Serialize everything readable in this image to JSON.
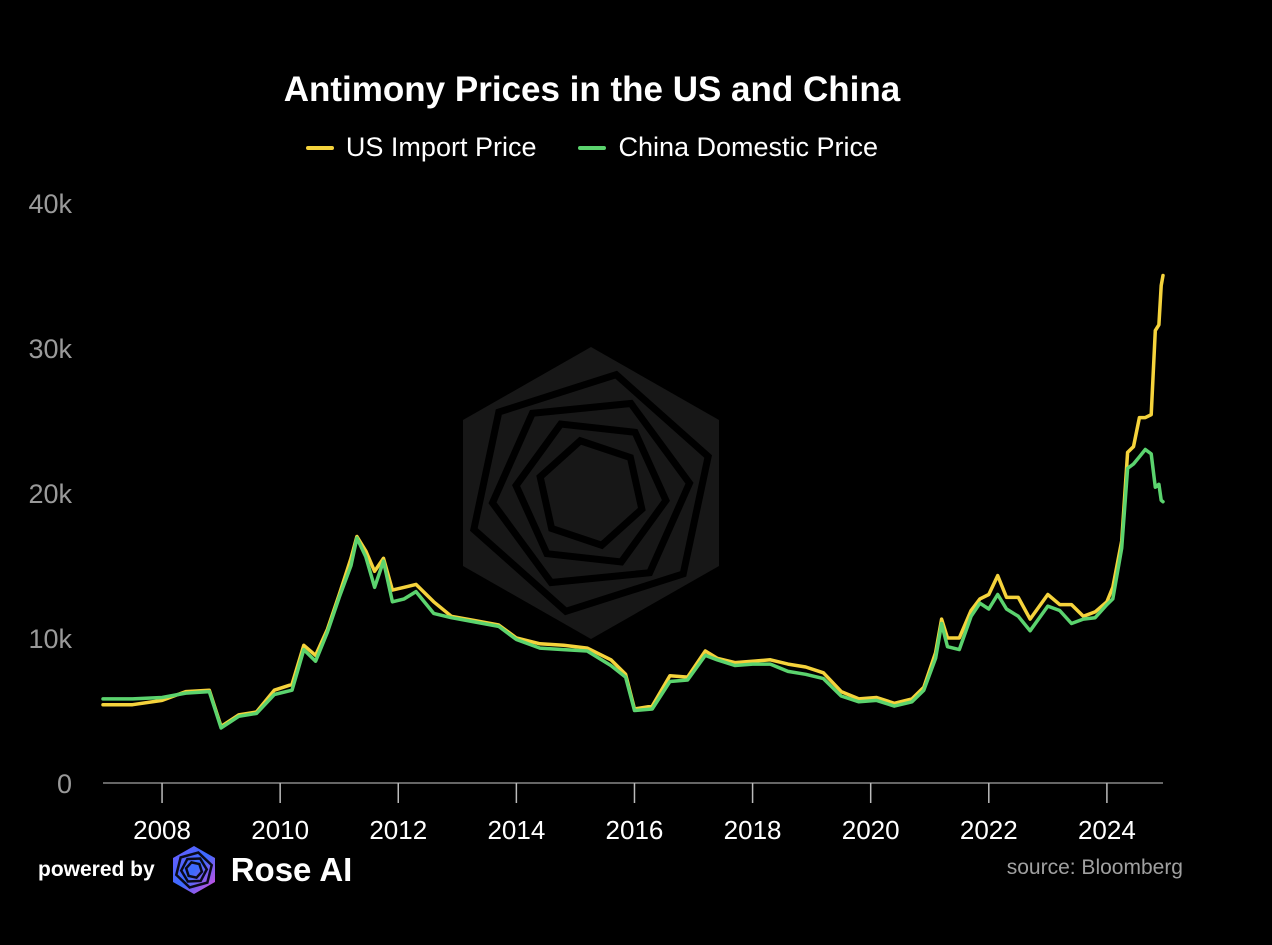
{
  "chart_data": {
    "type": "line",
    "title": "Antimony Prices in the US and China",
    "xlabel": "",
    "ylabel": "",
    "xlim": [
      2007.0,
      2024.95
    ],
    "ylim": [
      0,
      40000
    ],
    "x_ticks": [
      "2008",
      "2010",
      "2012",
      "2014",
      "2016",
      "2018",
      "2020",
      "2022",
      "2024"
    ],
    "y_ticks": [
      "0",
      "10k",
      "20k",
      "30k",
      "40k"
    ],
    "legend_position": "top-center",
    "grid": false,
    "series": [
      {
        "name": "US Import Price",
        "color": "#f5d33c",
        "x": [
          2007.0,
          2007.5,
          2008.0,
          2008.4,
          2008.8,
          2009.0,
          2009.3,
          2009.6,
          2009.9,
          2010.2,
          2010.4,
          2010.6,
          2010.8,
          2011.0,
          2011.2,
          2011.3,
          2011.45,
          2011.6,
          2011.75,
          2011.9,
          2012.1,
          2012.3,
          2012.6,
          2012.9,
          2013.3,
          2013.7,
          2014.0,
          2014.4,
          2014.8,
          2015.2,
          2015.6,
          2015.85,
          2016.0,
          2016.3,
          2016.6,
          2016.9,
          2017.2,
          2017.4,
          2017.7,
          2018.0,
          2018.3,
          2018.6,
          2018.9,
          2019.2,
          2019.5,
          2019.8,
          2020.1,
          2020.4,
          2020.7,
          2020.9,
          2021.1,
          2021.2,
          2021.3,
          2021.5,
          2021.7,
          2021.85,
          2022.0,
          2022.15,
          2022.3,
          2022.5,
          2022.7,
          2023.0,
          2023.2,
          2023.4,
          2023.6,
          2023.8,
          2024.0,
          2024.1,
          2024.25,
          2024.35,
          2024.45,
          2024.55,
          2024.65,
          2024.75,
          2024.82,
          2024.88,
          2024.92,
          2024.95
        ],
        "values": [
          5400,
          5400,
          5700,
          6300,
          6400,
          3900,
          4700,
          4900,
          6400,
          6800,
          9500,
          8800,
          10600,
          13000,
          15500,
          17000,
          16000,
          14600,
          15500,
          13300,
          13500,
          13700,
          12500,
          11500,
          11200,
          10900,
          10000,
          9600,
          9500,
          9300,
          8500,
          7500,
          5100,
          5300,
          7400,
          7300,
          9100,
          8600,
          8300,
          8400,
          8500,
          8200,
          8000,
          7600,
          6300,
          5800,
          5900,
          5500,
          5800,
          6600,
          9000,
          11300,
          10000,
          10000,
          11900,
          12700,
          13000,
          14300,
          12800,
          12800,
          11300,
          13000,
          12300,
          12300,
          11500,
          11800,
          12500,
          13500,
          16700,
          22800,
          23200,
          25200,
          25200,
          25400,
          31200,
          31600,
          34300,
          35000
        ]
      },
      {
        "name": "China Domestic Price",
        "color": "#5bd36e",
        "x": [
          2007.0,
          2007.5,
          2008.0,
          2008.4,
          2008.8,
          2009.0,
          2009.3,
          2009.6,
          2009.9,
          2010.2,
          2010.4,
          2010.6,
          2010.8,
          2011.0,
          2011.2,
          2011.3,
          2011.45,
          2011.6,
          2011.75,
          2011.9,
          2012.1,
          2012.3,
          2012.6,
          2012.9,
          2013.3,
          2013.7,
          2014.0,
          2014.4,
          2014.8,
          2015.2,
          2015.6,
          2015.85,
          2016.0,
          2016.3,
          2016.6,
          2016.9,
          2017.2,
          2017.4,
          2017.7,
          2018.0,
          2018.3,
          2018.6,
          2018.9,
          2019.2,
          2019.5,
          2019.8,
          2020.1,
          2020.4,
          2020.7,
          2020.9,
          2021.1,
          2021.2,
          2021.3,
          2021.5,
          2021.7,
          2021.85,
          2022.0,
          2022.15,
          2022.3,
          2022.5,
          2022.7,
          2023.0,
          2023.2,
          2023.4,
          2023.6,
          2023.8,
          2024.0,
          2024.1,
          2024.25,
          2024.35,
          2024.45,
          2024.55,
          2024.65,
          2024.75,
          2024.82,
          2024.88,
          2024.92,
          2024.95
        ],
        "values": [
          5800,
          5800,
          5900,
          6200,
          6300,
          3800,
          4600,
          4800,
          6100,
          6400,
          9200,
          8400,
          10400,
          12800,
          15000,
          16900,
          15600,
          13500,
          15300,
          12500,
          12700,
          13200,
          11700,
          11400,
          11100,
          10800,
          9900,
          9300,
          9200,
          9100,
          8100,
          7300,
          5000,
          5100,
          7000,
          7100,
          8800,
          8500,
          8100,
          8200,
          8200,
          7700,
          7500,
          7200,
          6000,
          5600,
          5700,
          5300,
          5600,
          6400,
          8600,
          11000,
          9400,
          9200,
          11500,
          12400,
          12000,
          13000,
          12000,
          11500,
          10500,
          12200,
          11900,
          11000,
          11300,
          11400,
          12300,
          12700,
          16200,
          21700,
          22000,
          22500,
          23000,
          22700,
          20400,
          20600,
          19500,
          19400
        ]
      }
    ]
  },
  "footer": {
    "powered_by": "powered by",
    "brand_name": "Rose AI",
    "brand_icon": "rose-ai-logo-icon",
    "source": "source: Bloomberg"
  }
}
